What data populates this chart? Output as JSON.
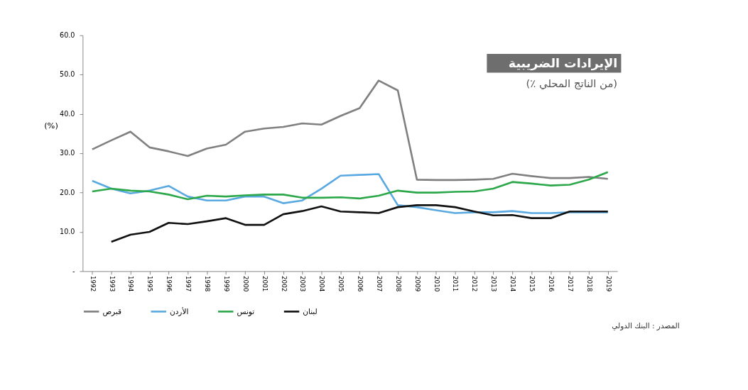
{
  "chart_data": {
    "type": "line",
    "title": "الإيرادات الضريبية",
    "subtitle": "(٪ من الناتج المحلي)",
    "ylabel": "(%)",
    "annotations": [
      "المصدر : البنك الدولي"
    ],
    "categories": [
      "1992",
      "1993",
      "1994",
      "1995",
      "1996",
      "1997",
      "1998",
      "1999",
      "2000",
      "2001",
      "2002",
      "2003",
      "2004",
      "2005",
      "2006",
      "2007",
      "2008",
      "2009",
      "2010",
      "2011",
      "2012",
      "2013",
      "2014",
      "2015",
      "2016",
      "2017",
      "2018",
      "2019"
    ],
    "series": [
      {
        "name": "قبرص",
        "color": "#808080",
        "values": [
          31,
          33.3,
          35.5,
          31.5,
          30.5,
          29.3,
          31.2,
          32.2,
          35.5,
          36.3,
          36.7,
          37.6,
          37.3,
          39.5,
          41.5,
          48.5,
          46,
          23.3,
          23.2,
          23.2,
          23.3,
          23.5,
          24.8,
          24.2,
          23.7,
          23.7,
          24,
          23.5
        ]
      },
      {
        "name": "الأردن",
        "color": "#5aa9e0",
        "values": [
          23,
          21,
          19.8,
          20.5,
          21.7,
          19,
          18,
          18,
          19,
          19,
          17.3,
          18,
          21,
          24.3,
          24.5,
          24.7,
          16.8,
          16.3,
          15.5,
          14.8,
          15,
          15,
          15.3,
          14.8,
          14.8,
          15,
          15,
          15
        ]
      },
      {
        "name": "تونس",
        "color": "#2ca84a",
        "values": [
          20.3,
          21,
          20.5,
          20.3,
          19.5,
          18.3,
          19.2,
          19,
          19.3,
          19.5,
          19.5,
          18.7,
          18.7,
          18.8,
          18.5,
          19.2,
          20.5,
          20,
          20,
          20.2,
          20.3,
          21,
          22.7,
          22.3,
          21.8,
          22,
          23.3,
          25.2
        ]
      },
      {
        "name": "لبنان",
        "color": "#111111",
        "values": [
          null,
          7.5,
          9.3,
          10,
          12.3,
          12,
          12.7,
          13.5,
          11.8,
          11.8,
          14.5,
          15.3,
          16.5,
          15.2,
          15,
          14.8,
          16.3,
          16.8,
          16.8,
          16.3,
          15.2,
          14.2,
          14.3,
          13.5,
          13.5,
          15.2,
          15.2,
          15.2
        ]
      }
    ],
    "ylim": [
      0,
      60
    ],
    "yticks": [
      {
        "value": 0,
        "label": "-"
      },
      {
        "value": 10,
        "label": "10.0"
      },
      {
        "value": 20,
        "label": "20.0"
      },
      {
        "value": 30,
        "label": "30.0"
      },
      {
        "value": 40,
        "label": "40.0"
      },
      {
        "value": 50,
        "label": "50.0"
      },
      {
        "value": 60,
        "label": "60.0"
      }
    ],
    "grid": false,
    "legend": "bottom",
    "line_style": "solid",
    "marker": "none"
  }
}
